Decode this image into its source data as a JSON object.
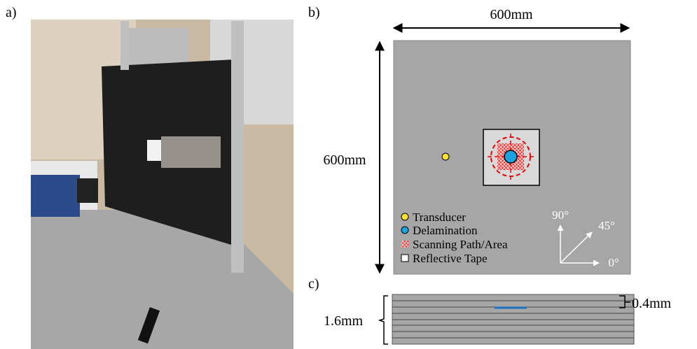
{
  "panel_a": {
    "label": "a)"
  },
  "panel_b": {
    "label": "b)",
    "width_label": "600mm",
    "height_label": "600mm",
    "legend": [
      "Transducer",
      "Delamination",
      "Scanning Path/Area",
      "Reflective Tape"
    ],
    "angles": [
      "90°",
      "45°",
      "0°"
    ]
  },
  "panel_c": {
    "label": "c)",
    "thickness_label": "1.6mm",
    "ply_label": "0.4mm"
  }
}
